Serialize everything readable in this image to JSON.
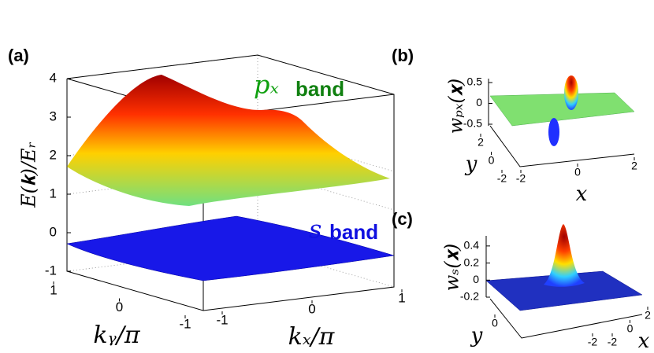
{
  "chart_data": [
    {
      "type": "surface3d",
      "panel": "(a)",
      "zlabel": "E(𝐤)/Eᵣ",
      "xlabel": "kₓ/π",
      "ylabel": "kᵧ/π",
      "annotations": [
        "pₓ",
        "band",
        "s",
        "band"
      ],
      "zlim": [
        -1,
        4
      ],
      "zticks": [
        -1,
        0,
        1,
        2,
        3,
        4
      ],
      "xlim": [
        -1,
        1
      ],
      "xticks": [
        -1,
        0,
        1
      ],
      "ylim": [
        -1,
        1
      ],
      "yticks": [
        -1,
        0,
        1
      ]
    },
    {
      "type": "surface3d",
      "panel": "(b)",
      "zlabel": "wₚₓ(𝐱)",
      "xlabel": "x",
      "ylabel": "y",
      "zlim": [
        -0.5,
        0.5
      ],
      "zticks": [
        -0.5,
        0,
        0.5
      ],
      "xlim": [
        -2,
        2
      ],
      "xticks": [
        -2,
        0,
        2
      ],
      "ylim": [
        -2,
        2
      ],
      "yticks": [
        -2,
        0,
        2
      ]
    },
    {
      "type": "surface3d",
      "panel": "(c)",
      "zlabel": "wₛ(𝐱)",
      "xlabel": "x",
      "ylabel": "y",
      "zlim": [
        -0.2,
        0.5
      ],
      "zticks": [
        -0.2,
        0,
        0.2,
        0.4
      ],
      "xlim": [
        -2,
        2
      ],
      "xticks": [
        -2,
        0,
        2
      ],
      "ylim": [
        -2,
        2
      ],
      "yticks": [
        -2,
        0
      ]
    }
  ]
}
